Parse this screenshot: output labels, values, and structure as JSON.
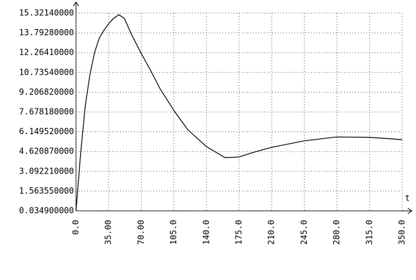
{
  "chart_data": {
    "type": "line",
    "x_label": "t",
    "x": [
      0,
      5,
      10,
      15,
      20,
      25,
      30,
      35,
      40,
      46,
      52,
      60,
      70,
      80,
      90,
      105,
      120,
      140,
      160,
      175,
      190,
      210,
      245,
      280,
      315,
      350
    ],
    "series": [
      {
        "color": "#000000",
        "values": [
          0.0349,
          4.5,
          8.2,
          10.6,
          12.3,
          13.4,
          14.0,
          14.5,
          14.9,
          15.2,
          14.9,
          13.6,
          12.2,
          10.9,
          9.5,
          7.8,
          6.3,
          5.0,
          4.15,
          4.2,
          4.55,
          4.95,
          5.45,
          5.75,
          5.72,
          5.54
        ]
      }
    ],
    "xlim": [
      0,
      350
    ],
    "xticks": [
      {
        "value": 0,
        "label": "0.0"
      },
      {
        "value": 35,
        "label": "35.00"
      },
      {
        "value": 70,
        "label": "70.00"
      },
      {
        "value": 105,
        "label": "105.0"
      },
      {
        "value": 140,
        "label": "140.0"
      },
      {
        "value": 175,
        "label": "175.0"
      },
      {
        "value": 210,
        "label": "210.0"
      },
      {
        "value": 245,
        "label": "245.0"
      },
      {
        "value": 280,
        "label": "280.0"
      },
      {
        "value": 315,
        "label": "315.0"
      },
      {
        "value": 350,
        "label": "350.0"
      }
    ],
    "ylim": [
      0.0349,
      15.3214
    ],
    "yticks": [
      {
        "value": 0.0349,
        "label": "0.034900000"
      },
      {
        "value": 1.56355,
        "label": "1.563550000"
      },
      {
        "value": 3.09221,
        "label": "3.092210000"
      },
      {
        "value": 4.62087,
        "label": "4.620870000"
      },
      {
        "value": 6.14952,
        "label": "6.149520000"
      },
      {
        "value": 7.67818,
        "label": "7.678180000"
      },
      {
        "value": 9.20682,
        "label": "9.206820000"
      },
      {
        "value": 10.7354,
        "label": "10.73540000"
      },
      {
        "value": 12.2641,
        "label": "12.26410000"
      },
      {
        "value": 13.7928,
        "label": "13.79280000"
      },
      {
        "value": 15.3214,
        "label": "15.32140000"
      }
    ],
    "grid": true
  }
}
